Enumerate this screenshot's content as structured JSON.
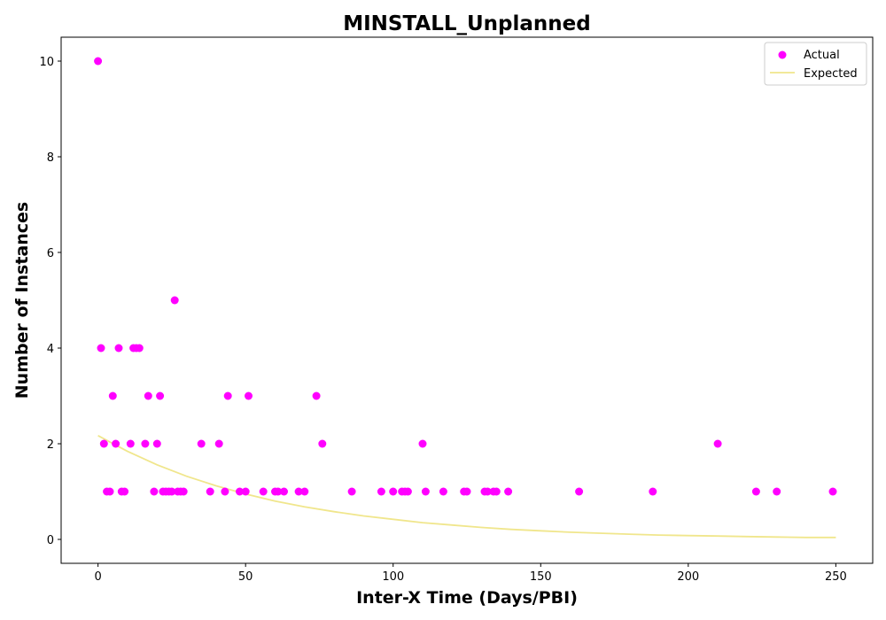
{
  "chart_data": {
    "type": "scatter",
    "title": "MINSTALL_Unplanned",
    "xlabel": "Inter-X Time (Days/PBI)",
    "ylabel": "Number of Instances",
    "xlim": [
      -12.5,
      262.5
    ],
    "ylim": [
      -0.5,
      10.5
    ],
    "xticks": [
      0,
      50,
      100,
      150,
      200,
      250
    ],
    "yticks": [
      0,
      2,
      4,
      6,
      8,
      10
    ],
    "grid": false,
    "legend_position": "top-right",
    "series": [
      {
        "name": "Actual",
        "kind": "scatter",
        "color": "#ff00ff",
        "points": [
          [
            0,
            10
          ],
          [
            1,
            4
          ],
          [
            2,
            2
          ],
          [
            3,
            1
          ],
          [
            4,
            1
          ],
          [
            5,
            3
          ],
          [
            6,
            2
          ],
          [
            7,
            4
          ],
          [
            8,
            1
          ],
          [
            9,
            1
          ],
          [
            11,
            2
          ],
          [
            12,
            4
          ],
          [
            13,
            4
          ],
          [
            14,
            4
          ],
          [
            16,
            2
          ],
          [
            17,
            3
          ],
          [
            19,
            1
          ],
          [
            20,
            2
          ],
          [
            21,
            3
          ],
          [
            22,
            1
          ],
          [
            23,
            1
          ],
          [
            24,
            1
          ],
          [
            25,
            1
          ],
          [
            26,
            5
          ],
          [
            27,
            1
          ],
          [
            28,
            1
          ],
          [
            29,
            1
          ],
          [
            35,
            2
          ],
          [
            38,
            1
          ],
          [
            41,
            2
          ],
          [
            43,
            1
          ],
          [
            44,
            3
          ],
          [
            48,
            1
          ],
          [
            50,
            1
          ],
          [
            51,
            3
          ],
          [
            56,
            1
          ],
          [
            60,
            1
          ],
          [
            61,
            1
          ],
          [
            63,
            1
          ],
          [
            68,
            1
          ],
          [
            70,
            1
          ],
          [
            74,
            3
          ],
          [
            76,
            2
          ],
          [
            86,
            1
          ],
          [
            96,
            1
          ],
          [
            100,
            1
          ],
          [
            103,
            1
          ],
          [
            104,
            1
          ],
          [
            105,
            1
          ],
          [
            110,
            2
          ],
          [
            111,
            1
          ],
          [
            117,
            1
          ],
          [
            124,
            1
          ],
          [
            125,
            1
          ],
          [
            131,
            1
          ],
          [
            132,
            1
          ],
          [
            134,
            1
          ],
          [
            135,
            1
          ],
          [
            139,
            1
          ],
          [
            163,
            1
          ],
          [
            188,
            1
          ],
          [
            210,
            2
          ],
          [
            223,
            1
          ],
          [
            230,
            1
          ],
          [
            249,
            1
          ]
        ]
      },
      {
        "name": "Expected",
        "kind": "line",
        "color": "#f0e68c",
        "points": [
          [
            0,
            2.17
          ],
          [
            10,
            1.84
          ],
          [
            20,
            1.56
          ],
          [
            30,
            1.32
          ],
          [
            40,
            1.12
          ],
          [
            50,
            0.95
          ],
          [
            60,
            0.8
          ],
          [
            70,
            0.68
          ],
          [
            80,
            0.58
          ],
          [
            90,
            0.49
          ],
          [
            100,
            0.42
          ],
          [
            110,
            0.35
          ],
          [
            120,
            0.3
          ],
          [
            130,
            0.25
          ],
          [
            140,
            0.21
          ],
          [
            150,
            0.18
          ],
          [
            160,
            0.15
          ],
          [
            170,
            0.13
          ],
          [
            180,
            0.11
          ],
          [
            190,
            0.09
          ],
          [
            200,
            0.08
          ],
          [
            210,
            0.07
          ],
          [
            220,
            0.06
          ],
          [
            230,
            0.05
          ],
          [
            240,
            0.04
          ],
          [
            250,
            0.04
          ]
        ]
      }
    ]
  }
}
